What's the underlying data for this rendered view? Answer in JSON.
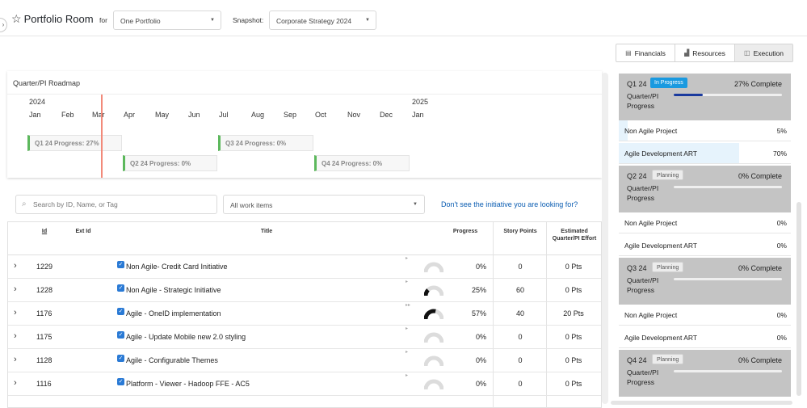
{
  "header": {
    "app_title": "Portfolio Room",
    "for_label": "for",
    "portfolio_select": "One Portfolio",
    "snapshot_label": "Snapshot:",
    "snapshot_select": "Corporate Strategy 2024"
  },
  "roadmap": {
    "title": "Quarter/PI Roadmap",
    "years": [
      "2024",
      "2025"
    ],
    "months": [
      "Jan",
      "Feb",
      "Mar",
      "Apr",
      "May",
      "Jun",
      "Jul",
      "Aug",
      "Sep",
      "Oct",
      "Nov",
      "Dec",
      "Jan"
    ],
    "bars": [
      {
        "label": "Q1 24 Progress: 27%",
        "progress": 0.27
      },
      {
        "label": "Q2 24 Progress: 0%",
        "progress": 0
      },
      {
        "label": "Q3 24 Progress: 0%",
        "progress": 0
      },
      {
        "label": "Q4 24 Progress: 0%",
        "progress": 0
      }
    ]
  },
  "filters": {
    "search_placeholder": "Search by ID, Name, or Tag",
    "work_items_select": "All work items",
    "help_link": "Don't see the initiative you are looking for?"
  },
  "table": {
    "columns": {
      "id": "Id",
      "ext_id": "Ext Id",
      "title": "Title",
      "progress": "Progress",
      "story_points": "Story Points",
      "effort": "Estimated Quarter/PI Effort"
    },
    "rows": [
      {
        "id": "1229",
        "ext_id": "",
        "title": "Non Agile- Credit Card Initiative",
        "progress": "0%",
        "progress_value": 0,
        "story_points": "0",
        "effort": "0 Pts"
      },
      {
        "id": "1228",
        "ext_id": "",
        "title": "Non Agile - Strategic Initiative",
        "progress": "25%",
        "progress_value": 0.25,
        "story_points": "60",
        "effort": "0 Pts"
      },
      {
        "id": "1176",
        "ext_id": "",
        "title": "Agile - OneID implementation",
        "progress": "57%",
        "progress_value": 0.57,
        "story_points": "40",
        "effort": "20 Pts"
      },
      {
        "id": "1175",
        "ext_id": "",
        "title": "Agile - Update Mobile new 2.0 styling",
        "progress": "0%",
        "progress_value": 0,
        "story_points": "0",
        "effort": "0 Pts"
      },
      {
        "id": "1128",
        "ext_id": "",
        "title": "Agile - Configurable Themes",
        "progress": "0%",
        "progress_value": 0,
        "story_points": "0",
        "effort": "0 Pts"
      },
      {
        "id": "1116",
        "ext_id": "",
        "title": "Platform - Viewer - Hadoop FFE - AC5",
        "progress": "0%",
        "progress_value": 0,
        "story_points": "0",
        "effort": "0 Pts"
      }
    ]
  },
  "tabs": [
    {
      "label": "Financials",
      "icon": "financials-icon",
      "active": false
    },
    {
      "label": "Resources",
      "icon": "bar-chart-icon",
      "active": false
    },
    {
      "label": "Execution",
      "icon": "cube-icon",
      "active": true
    }
  ],
  "quarters": [
    {
      "name": "Q1 24",
      "status": "In Progress",
      "complete": "27% Complete",
      "progress_value": 0.27,
      "label": "Quarter/PI Progress",
      "projects": [
        {
          "name": "Non Agile Project",
          "value": "5%",
          "fill": 0.05
        },
        {
          "name": "Agile Development ART",
          "value": "70%",
          "fill": 0.7
        }
      ]
    },
    {
      "name": "Q2 24",
      "status": "Planning",
      "complete": "0% Complete",
      "progress_value": 0,
      "label": "Quarter/PI Progress",
      "projects": [
        {
          "name": "Non Agile Project",
          "value": "0%",
          "fill": 0
        },
        {
          "name": "Agile Development ART",
          "value": "0%",
          "fill": 0
        }
      ]
    },
    {
      "name": "Q3 24",
      "status": "Planning",
      "complete": "0% Complete",
      "progress_value": 0,
      "label": "Quarter/PI Progress",
      "projects": [
        {
          "name": "Non Agile Project",
          "value": "0%",
          "fill": 0
        },
        {
          "name": "Agile Development ART",
          "value": "0%",
          "fill": 0
        }
      ]
    },
    {
      "name": "Q4 24",
      "status": "Planning",
      "complete": "0% Complete",
      "progress_value": 0,
      "label": "Quarter/PI Progress",
      "projects": []
    }
  ],
  "colors": {
    "accent": "#0b5db2",
    "in_progress_badge": "#1a9ae0",
    "progress_fill": "#1a3a9e",
    "roadmap_bar_accent": "#5cb85c",
    "today_line": "#f28a7a",
    "quarter_card_bg": "#c4c4c4"
  }
}
